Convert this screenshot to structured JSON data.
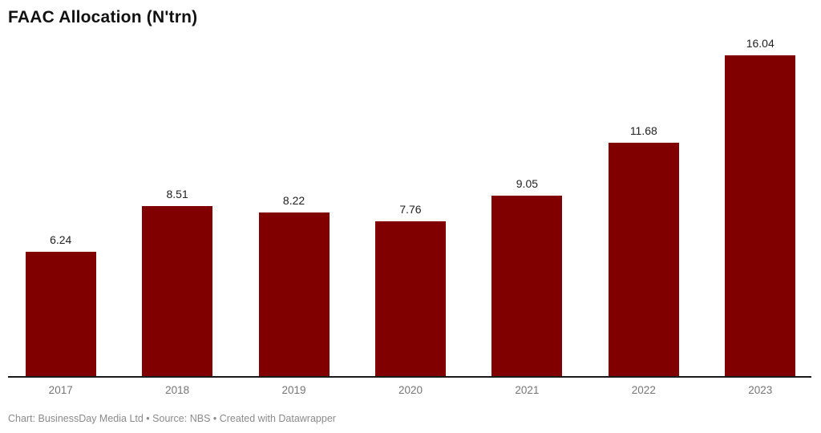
{
  "title": "FAAC Allocation (N'trn)",
  "footer": {
    "attribution": "Chart: BusinessDay Media Ltd • Source: NBS • Created with Datawrapper"
  },
  "colors": {
    "bar": "#800000",
    "axis_line": "#1a1a1a",
    "tick_label": "#767676",
    "value_label": "#222222",
    "footer_text": "#8a8a8a"
  },
  "chart_data": {
    "type": "bar",
    "title": "FAAC Allocation (N'trn)",
    "categories": [
      "2017",
      "2018",
      "2019",
      "2020",
      "2021",
      "2022",
      "2023"
    ],
    "values": [
      6.24,
      8.51,
      8.22,
      7.76,
      9.05,
      11.68,
      16.04
    ],
    "value_label_decimals": 2,
    "xlabel": "",
    "ylabel": "",
    "ylim": [
      0,
      16.6
    ],
    "grid": false,
    "legend": "none",
    "value_labels_shown": true
  }
}
